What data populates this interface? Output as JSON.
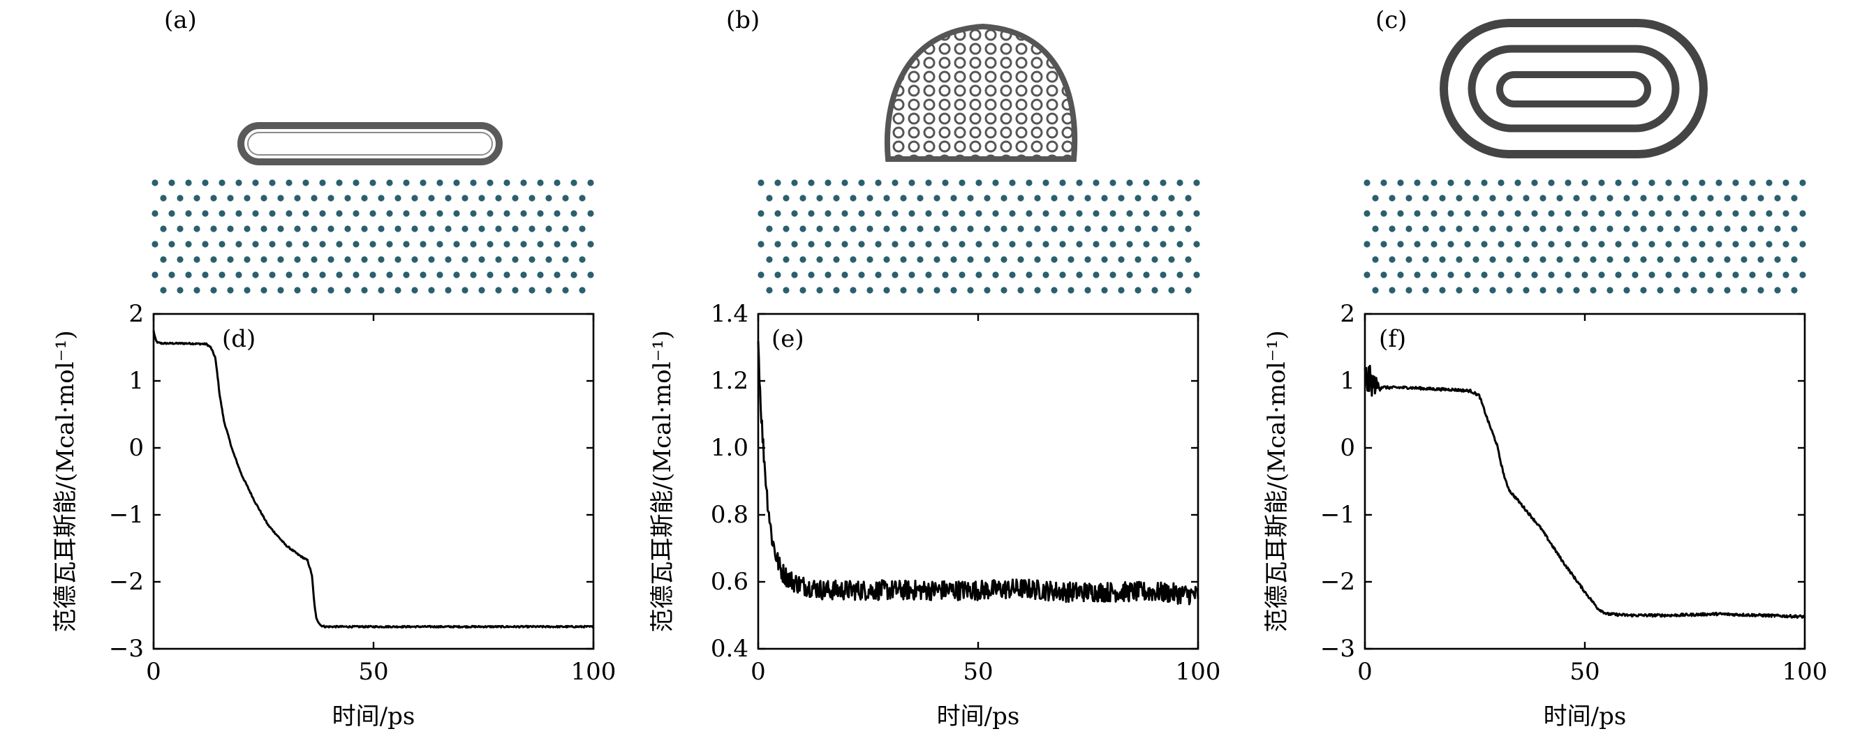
{
  "structure_labels": [
    "(a)",
    "(b)",
    "(c)"
  ],
  "chart_data": [
    {
      "type": "line",
      "panel_label": "(d)",
      "xlabel": "时间/ps",
      "ylabel": "范德瓦耳斯能/(Mcal·mol⁻¹)",
      "xlim": [
        0,
        100
      ],
      "ylim": [
        -3,
        2
      ],
      "xticks": [
        0,
        50,
        100
      ],
      "xticklabels": [
        "0",
        "50",
        "100"
      ],
      "yticks": [
        -3,
        -2,
        -1,
        0,
        1,
        2
      ],
      "yticklabels": [
        "−3",
        "−2",
        "−1",
        "0",
        "1",
        "2"
      ],
      "series": [
        {
          "name": "van der Waals energy",
          "x": [
            0,
            0.5,
            1,
            2,
            4,
            8,
            12,
            13,
            14,
            14.5,
            15,
            16,
            18,
            20,
            23,
            26,
            30,
            33,
            35,
            36,
            36.5,
            37,
            38,
            39,
            40,
            50,
            60,
            70,
            80,
            90,
            100
          ],
          "y": [
            1.75,
            1.6,
            1.57,
            1.56,
            1.56,
            1.56,
            1.55,
            1.5,
            1.35,
            1.1,
            0.8,
            0.4,
            -0.05,
            -0.4,
            -0.8,
            -1.15,
            -1.45,
            -1.6,
            -1.68,
            -1.9,
            -2.3,
            -2.55,
            -2.65,
            -2.67,
            -2.67,
            -2.67,
            -2.67,
            -2.67,
            -2.67,
            -2.67,
            -2.67
          ],
          "noise": 0.012
        }
      ]
    },
    {
      "type": "line",
      "panel_label": "(e)",
      "xlabel": "时间/ps",
      "ylabel": "范德瓦耳斯能/(Mcal·mol⁻¹)",
      "xlim": [
        0,
        100
      ],
      "ylim": [
        0.4,
        1.4
      ],
      "xticks": [
        0,
        50,
        100
      ],
      "xticklabels": [
        "0",
        "50",
        "100"
      ],
      "yticks": [
        0.4,
        0.6,
        0.8,
        1.0,
        1.2,
        1.4
      ],
      "yticklabels": [
        "0.4",
        "0.6",
        "0.8",
        "1.0",
        "1.2",
        "1.4"
      ],
      "series": [
        {
          "name": "van der Waals energy",
          "x": [
            0,
            0.5,
            1,
            2,
            3,
            4,
            5,
            6,
            8,
            10,
            15,
            20,
            30,
            40,
            50,
            60,
            70,
            80,
            90,
            100
          ],
          "y": [
            1.32,
            1.15,
            1.03,
            0.86,
            0.74,
            0.68,
            0.64,
            0.62,
            0.6,
            0.59,
            0.575,
            0.575,
            0.575,
            0.575,
            0.575,
            0.58,
            0.57,
            0.57,
            0.57,
            0.56
          ],
          "noise": 0.03
        }
      ]
    },
    {
      "type": "line",
      "panel_label": "(f)",
      "xlabel": "时间/ps",
      "ylabel": "范德瓦耳斯能/(Mcal·mol⁻¹)",
      "xlim": [
        0,
        100
      ],
      "ylim": [
        -3,
        2
      ],
      "xticks": [
        0,
        50,
        100
      ],
      "xticklabels": [
        "0",
        "50",
        "100"
      ],
      "yticks": [
        -3,
        -2,
        -1,
        0,
        1,
        2
      ],
      "yticklabels": [
        "−3",
        "−2",
        "−1",
        "0",
        "1",
        "2"
      ],
      "series": [
        {
          "name": "van der Waals energy",
          "x": [
            0,
            1,
            2,
            3,
            5,
            10,
            15,
            20,
            24,
            26,
            28,
            30,
            31,
            32,
            33,
            35,
            40,
            45,
            50,
            53,
            55,
            60,
            70,
            80,
            90,
            100
          ],
          "y": [
            1.0,
            1.0,
            0.95,
            0.92,
            0.9,
            0.9,
            0.88,
            0.87,
            0.85,
            0.78,
            0.4,
            0.05,
            -0.25,
            -0.5,
            -0.65,
            -0.8,
            -1.2,
            -1.7,
            -2.15,
            -2.4,
            -2.48,
            -2.5,
            -2.5,
            -2.48,
            -2.5,
            -2.52
          ],
          "noise": 0.02,
          "early_noise": 0.3
        }
      ]
    }
  ]
}
